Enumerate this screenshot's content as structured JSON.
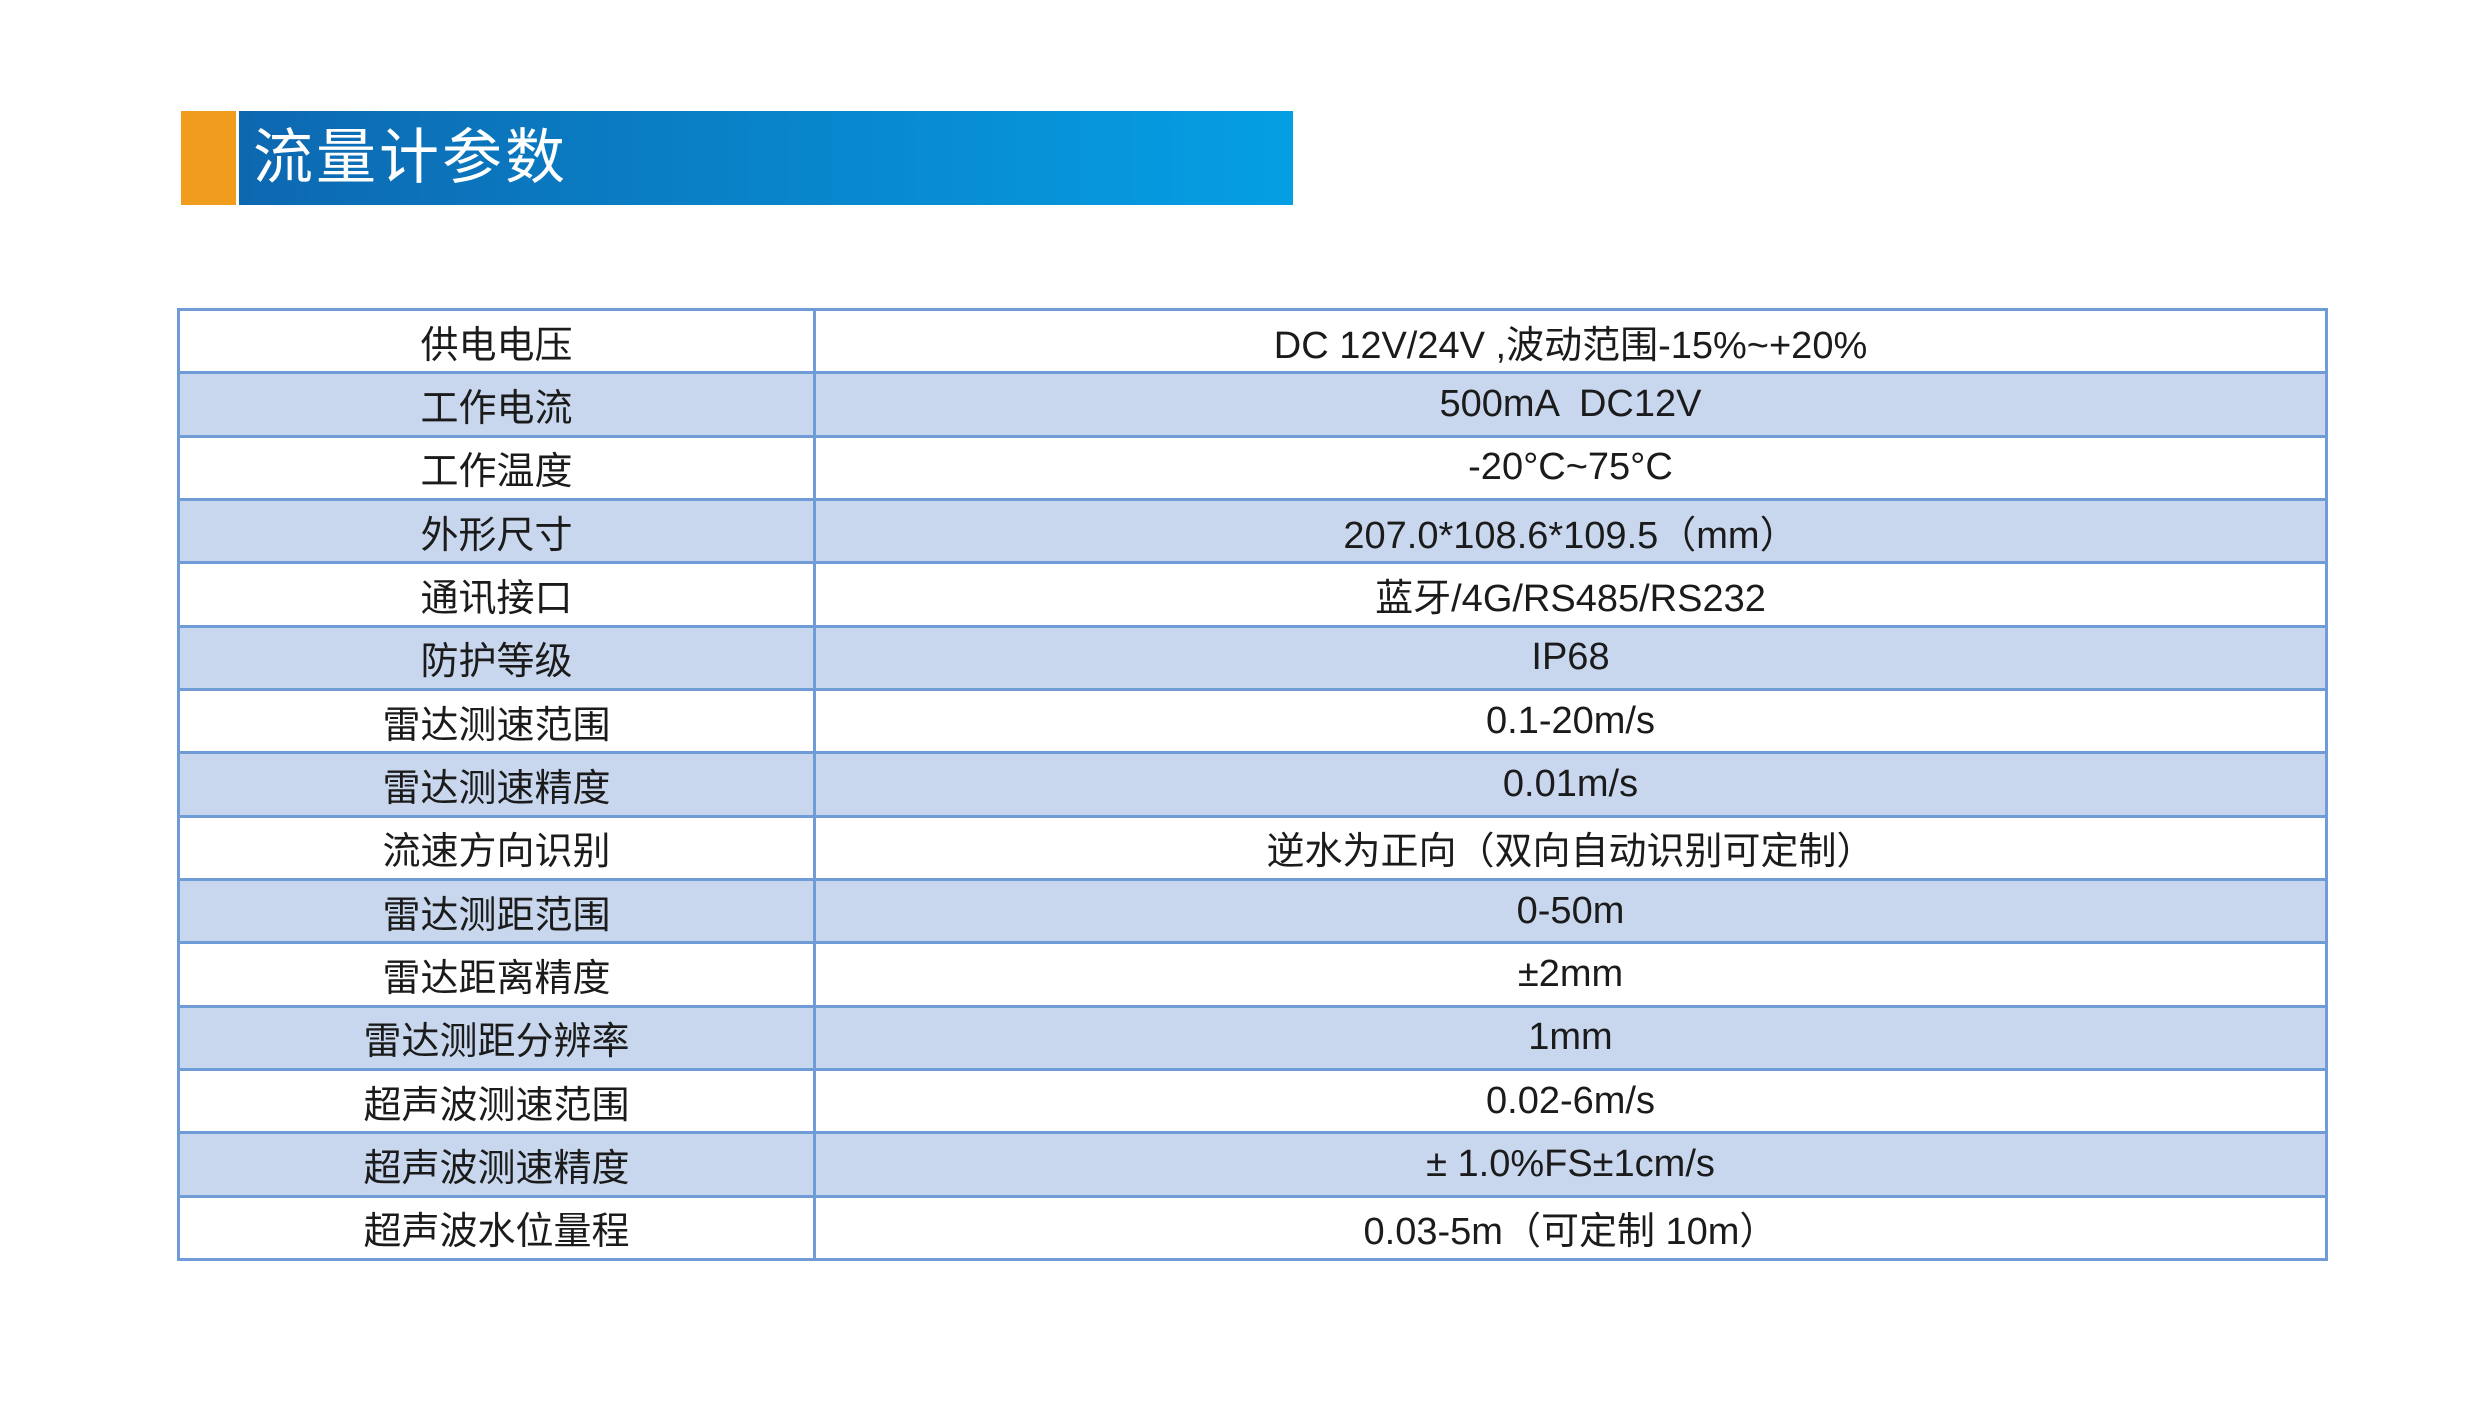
{
  "header": {
    "title": "流量计参数",
    "accent_color": "#f09c1c",
    "bar_gradient_start": "#0d68b0",
    "bar_gradient_end": "#059fe4"
  },
  "table": {
    "border_color": "#6f9bd6",
    "stripe_color": "#c8d7ee",
    "rows": [
      {
        "label": "供电电压",
        "value": "DC 12V/24V ,波动范围-15%~+20%"
      },
      {
        "label": "工作电流",
        "value": "500mA  DC12V"
      },
      {
        "label": "工作温度",
        "value": "-20°C~75°C"
      },
      {
        "label": "外形尺寸",
        "value": "207.0*108.6*109.5（mm）"
      },
      {
        "label": "通讯接口",
        "value": "蓝牙/4G/RS485/RS232"
      },
      {
        "label": "防护等级",
        "value": "IP68"
      },
      {
        "label": "雷达测速范围",
        "value": "0.1-20m/s"
      },
      {
        "label": "雷达测速精度",
        "value": "0.01m/s"
      },
      {
        "label": "流速方向识别",
        "value": "逆水为正向（双向自动识别可定制）"
      },
      {
        "label": "雷达测距范围",
        "value": "0-50m"
      },
      {
        "label": "雷达距离精度",
        "value": "±2mm"
      },
      {
        "label": "雷达测距分辨率",
        "value": "1mm"
      },
      {
        "label": "超声波测速范围",
        "value": "0.02-6m/s"
      },
      {
        "label": "超声波测速精度",
        "value": "± 1.0%FS±1cm/s"
      },
      {
        "label": "超声波水位量程",
        "value": "0.03-5m（可定制 10m）"
      }
    ]
  }
}
